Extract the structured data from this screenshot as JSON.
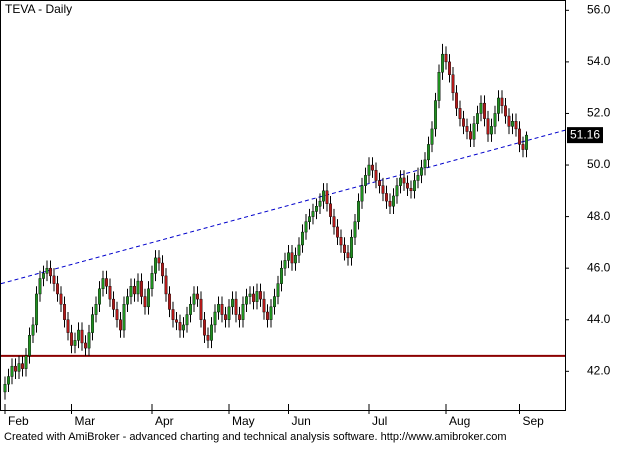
{
  "chart_data": {
    "type": "candlestick",
    "title": "TEVA - Daily",
    "footer": "Created with AmiBroker - advanced charting and technical analysis software. http://www.amibroker.com",
    "categories": [
      "Feb",
      null,
      null,
      null,
      null,
      null,
      null,
      null,
      null,
      null,
      null,
      null,
      null,
      null,
      null,
      null,
      null,
      null,
      null,
      "Mar",
      null,
      null,
      null,
      null,
      null,
      null,
      null,
      null,
      null,
      null,
      null,
      null,
      null,
      null,
      null,
      null,
      null,
      null,
      null,
      null,
      null,
      null,
      "Apr",
      null,
      null,
      null,
      null,
      null,
      null,
      null,
      null,
      null,
      null,
      null,
      null,
      null,
      null,
      null,
      null,
      null,
      null,
      null,
      null,
      null,
      "May",
      null,
      null,
      null,
      null,
      null,
      null,
      null,
      null,
      null,
      null,
      null,
      null,
      null,
      null,
      null,
      null,
      "Jun",
      null,
      null,
      null,
      null,
      null,
      null,
      null,
      null,
      null,
      null,
      null,
      null,
      null,
      null,
      null,
      null,
      null,
      null,
      null,
      null,
      null,
      null,
      "Jul",
      null,
      null,
      null,
      null,
      null,
      null,
      null,
      null,
      null,
      null,
      null,
      null,
      null,
      null,
      null,
      null,
      null,
      null,
      null,
      null,
      null,
      "Aug",
      null,
      null,
      null,
      null,
      null,
      null,
      null,
      null,
      null,
      null,
      null,
      null,
      null,
      null,
      null,
      null,
      null,
      null,
      null,
      null,
      "Sep",
      null,
      null
    ],
    "open": [
      41.2,
      41.5,
      41.8,
      42.2,
      42.0,
      42.3,
      42.1,
      42.6,
      43.4,
      43.8,
      45.0,
      45.6,
      45.8,
      46.0,
      45.7,
      45.4,
      45.0,
      44.6,
      44.0,
      43.5,
      43.0,
      43.2,
      43.6,
      43.1,
      42.9,
      43.5,
      44.2,
      44.6,
      45.2,
      45.6,
      45.3,
      44.8,
      44.4,
      44.0,
      43.6,
      44.6,
      44.9,
      45.3,
      45.0,
      45.5,
      44.9,
      44.5,
      45.2,
      45.8,
      46.4,
      46.2,
      45.7,
      45.0,
      44.4,
      44.0,
      43.9,
      43.6,
      43.8,
      44.2,
      44.6,
      45.0,
      44.8,
      44.0,
      43.4,
      43.2,
      43.8,
      44.3,
      44.6,
      44.2,
      44.0,
      44.5,
      44.8,
      44.2,
      44.0,
      44.6,
      44.9,
      45.0,
      44.7,
      45.1,
      44.8,
      44.3,
      44.0,
      44.5,
      44.9,
      45.4,
      46.0,
      46.3,
      46.6,
      46.2,
      46.5,
      46.9,
      47.4,
      47.8,
      48.0,
      48.2,
      48.4,
      48.6,
      49.0,
      48.5,
      48.0,
      47.6,
      47.2,
      46.9,
      46.6,
      46.4,
      47.2,
      47.8,
      48.6,
      49.2,
      49.6,
      50.0,
      49.8,
      49.4,
      49.2,
      48.9,
      48.6,
      48.4,
      48.8,
      49.2,
      49.5,
      49.3,
      49.1,
      49.0,
      49.4,
      49.6,
      49.9,
      50.2,
      50.8,
      51.4,
      52.5,
      53.6,
      54.3,
      54.0,
      53.5,
      52.8,
      52.2,
      51.8,
      51.5,
      51.3,
      51.0,
      51.6,
      52.0,
      52.4,
      51.8,
      51.2,
      51.5,
      52.0,
      52.6,
      52.3,
      51.9,
      51.5,
      51.7,
      51.4,
      50.8,
      50.6
    ],
    "high": [
      41.8,
      42.1,
      42.5,
      42.5,
      42.6,
      42.6,
      42.9,
      43.7,
      44.1,
      45.3,
      45.9,
      46.1,
      46.3,
      46.3,
      46.0,
      45.7,
      45.3,
      44.9,
      44.3,
      43.8,
      43.5,
      43.9,
      43.9,
      43.4,
      43.8,
      44.5,
      44.9,
      45.5,
      45.9,
      45.9,
      45.6,
      45.1,
      44.7,
      44.3,
      44.9,
      45.2,
      45.6,
      45.6,
      45.8,
      45.8,
      45.2,
      45.5,
      46.1,
      46.7,
      46.7,
      46.5,
      46.0,
      45.3,
      44.7,
      44.3,
      44.2,
      44.1,
      44.5,
      44.9,
      45.3,
      45.3,
      45.1,
      44.3,
      43.7,
      44.1,
      44.6,
      44.9,
      44.9,
      44.5,
      44.8,
      45.1,
      45.1,
      44.5,
      44.9,
      45.2,
      45.3,
      45.3,
      45.4,
      45.4,
      45.1,
      44.6,
      44.8,
      45.2,
      45.7,
      46.3,
      46.6,
      46.9,
      46.9,
      46.8,
      47.2,
      47.7,
      48.1,
      48.3,
      48.5,
      48.7,
      48.9,
      49.3,
      49.3,
      48.8,
      48.3,
      47.9,
      47.5,
      47.2,
      46.9,
      47.5,
      48.1,
      48.9,
      49.5,
      49.9,
      50.3,
      50.3,
      50.1,
      49.7,
      49.5,
      49.2,
      48.9,
      49.1,
      49.5,
      49.8,
      49.8,
      49.6,
      49.4,
      49.7,
      49.9,
      50.2,
      50.5,
      51.1,
      51.7,
      52.8,
      53.9,
      54.7,
      54.6,
      54.3,
      53.8,
      53.1,
      52.5,
      52.1,
      51.8,
      51.6,
      51.9,
      52.3,
      52.7,
      52.7,
      52.1,
      51.8,
      52.3,
      52.9,
      52.9,
      52.6,
      52.2,
      52.0,
      52.0,
      51.7,
      51.1,
      51.3
    ],
    "low": [
      40.9,
      41.2,
      41.5,
      41.7,
      41.7,
      41.8,
      41.8,
      42.3,
      43.1,
      43.5,
      44.7,
      45.3,
      45.5,
      45.4,
      45.1,
      44.7,
      44.3,
      43.7,
      43.2,
      42.7,
      42.7,
      42.9,
      42.8,
      42.6,
      42.6,
      43.2,
      43.9,
      44.3,
      44.9,
      45.0,
      44.5,
      44.1,
      43.7,
      43.3,
      43.3,
      44.3,
      44.6,
      44.7,
      44.7,
      44.6,
      44.2,
      44.2,
      44.9,
      45.5,
      45.9,
      45.4,
      44.7,
      44.1,
      43.7,
      43.6,
      43.3,
      43.3,
      43.5,
      43.9,
      44.3,
      44.5,
      43.7,
      43.1,
      42.9,
      42.9,
      43.5,
      44.0,
      43.9,
      43.7,
      43.7,
      44.2,
      43.9,
      43.7,
      43.7,
      44.3,
      44.6,
      44.4,
      44.4,
      44.5,
      44.0,
      43.7,
      43.7,
      44.2,
      44.6,
      45.1,
      45.7,
      46.0,
      45.9,
      45.9,
      46.2,
      46.6,
      47.1,
      47.5,
      47.7,
      47.9,
      48.1,
      48.3,
      48.2,
      47.7,
      47.3,
      46.9,
      46.6,
      46.3,
      46.1,
      46.1,
      46.9,
      47.5,
      48.3,
      48.9,
      49.3,
      49.5,
      49.1,
      48.9,
      48.6,
      48.3,
      48.1,
      48.1,
      48.5,
      48.9,
      49.0,
      48.8,
      48.7,
      48.7,
      49.1,
      49.3,
      49.6,
      49.9,
      50.5,
      51.1,
      52.2,
      53.3,
      53.7,
      53.2,
      52.5,
      51.9,
      51.5,
      51.2,
      51.0,
      50.7,
      50.7,
      51.3,
      51.7,
      51.5,
      50.9,
      50.9,
      51.2,
      51.7,
      52.0,
      51.6,
      51.2,
      51.2,
      51.1,
      50.5,
      50.3,
      50.3
    ],
    "close": [
      41.5,
      41.8,
      42.2,
      42.0,
      42.3,
      42.1,
      42.6,
      43.4,
      43.8,
      45.0,
      45.6,
      45.8,
      46.0,
      45.7,
      45.4,
      45.0,
      44.6,
      44.0,
      43.5,
      43.0,
      43.2,
      43.6,
      43.1,
      42.9,
      43.5,
      44.2,
      44.6,
      45.2,
      45.6,
      45.3,
      44.8,
      44.4,
      44.0,
      43.6,
      44.6,
      44.9,
      45.3,
      45.0,
      45.5,
      44.9,
      44.5,
      45.2,
      45.8,
      46.4,
      46.2,
      45.7,
      45.0,
      44.4,
      44.0,
      43.9,
      43.6,
      43.8,
      44.2,
      44.6,
      45.0,
      44.8,
      44.0,
      43.4,
      43.2,
      43.8,
      44.3,
      44.6,
      44.2,
      44.0,
      44.5,
      44.8,
      44.2,
      44.0,
      44.6,
      44.9,
      45.0,
      44.7,
      45.1,
      44.8,
      44.3,
      44.0,
      44.5,
      44.9,
      45.4,
      46.0,
      46.3,
      46.6,
      46.2,
      46.5,
      46.9,
      47.4,
      47.8,
      48.0,
      48.2,
      48.4,
      48.6,
      49.0,
      48.5,
      48.0,
      47.6,
      47.2,
      46.9,
      46.6,
      46.4,
      47.2,
      47.8,
      48.6,
      49.2,
      49.6,
      50.0,
      49.8,
      49.4,
      49.2,
      48.9,
      48.6,
      48.4,
      48.8,
      49.2,
      49.5,
      49.3,
      49.1,
      49.0,
      49.4,
      49.6,
      49.9,
      50.2,
      50.8,
      51.4,
      52.5,
      53.6,
      54.3,
      54.0,
      53.5,
      52.8,
      52.2,
      51.8,
      51.5,
      51.3,
      51.0,
      51.6,
      52.0,
      52.4,
      51.8,
      51.2,
      51.5,
      52.0,
      52.6,
      52.3,
      51.9,
      51.5,
      51.7,
      51.4,
      50.8,
      50.6,
      51.16
    ],
    "last_label": "51.16",
    "up_color": "#1f8f1f",
    "down_color": "#b01818",
    "trendline": [
      45.4,
      51.35
    ],
    "trendline_color": "#0000cc",
    "hline": 42.6,
    "hline_color": "#8b0000",
    "ylim": [
      40.5,
      56.4
    ],
    "yticks": [
      {
        "value": 42,
        "label": "42.0"
      },
      {
        "value": 44,
        "label": "44.0"
      },
      {
        "value": 46,
        "label": "46.0"
      },
      {
        "value": 48,
        "label": "48.0"
      },
      {
        "value": 50,
        "label": "50.0"
      },
      {
        "value": 52,
        "label": "52.0"
      },
      {
        "value": 54,
        "label": "54.0"
      },
      {
        "value": 56,
        "label": "56.0"
      }
    ]
  }
}
